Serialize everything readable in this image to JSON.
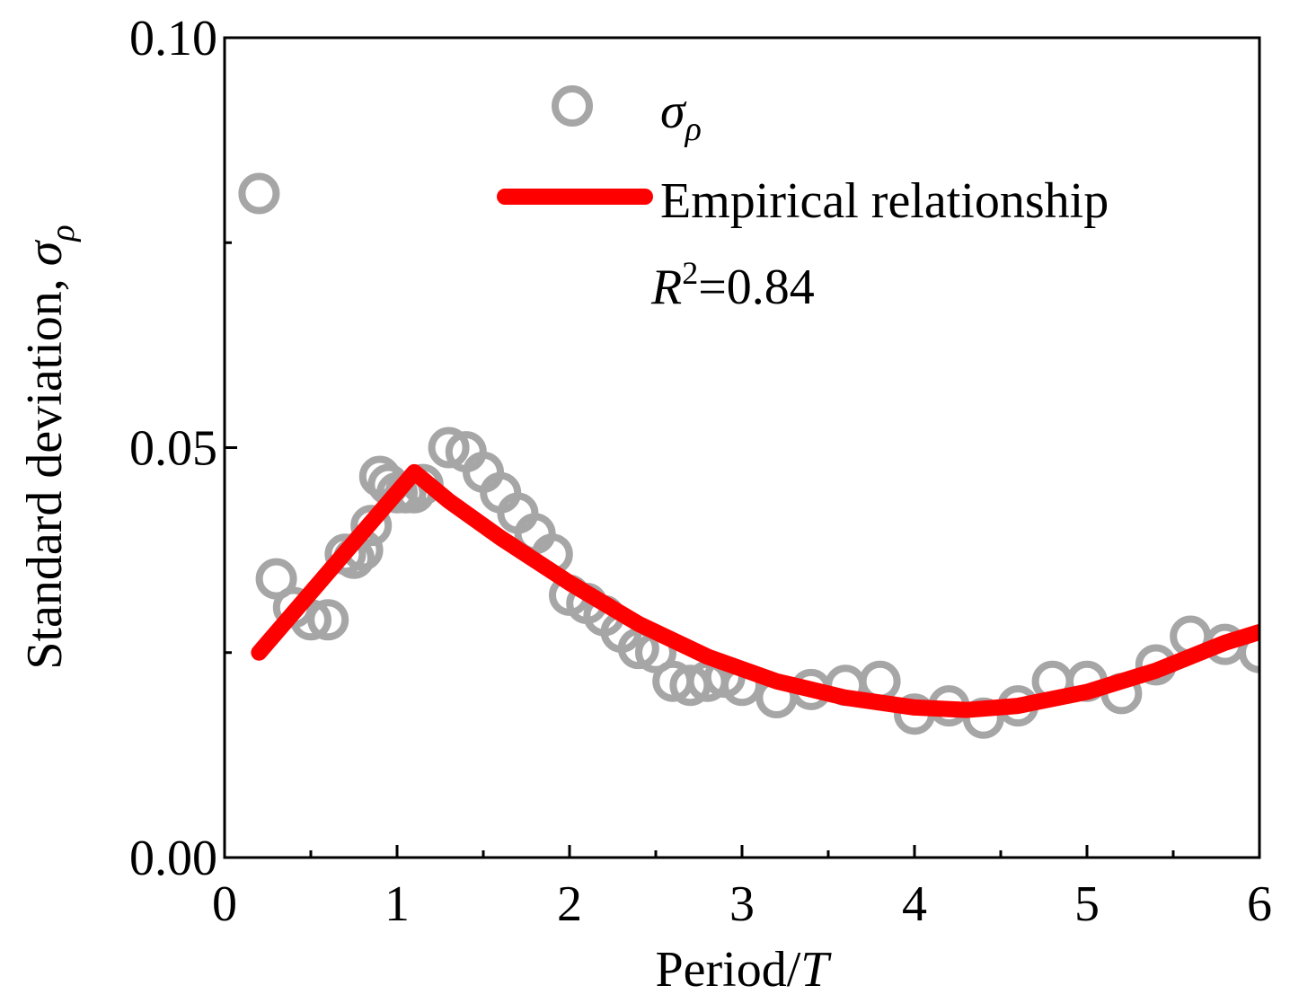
{
  "chart_data": {
    "type": "scatter",
    "xlabel_main": "Period/",
    "xlabel_italic": "T",
    "ylabel_main": "Standard deviation, ",
    "ylabel_symbol": "σ",
    "ylabel_sub": "ρ",
    "xlim": [
      0,
      6
    ],
    "ylim": [
      0,
      0.1
    ],
    "xticks": [
      0,
      1,
      2,
      3,
      4,
      5,
      6
    ],
    "xtick_labels": [
      "0",
      "1",
      "2",
      "3",
      "4",
      "5",
      "6"
    ],
    "yticks": [
      0,
      0.05,
      0.1
    ],
    "ytick_labels": [
      "0.00",
      "0.05",
      "0.10"
    ],
    "grid": false,
    "legend_position": "top-right",
    "colors": {
      "scatter": "#a6a6a6",
      "fit": "#ff0000",
      "axis": "#000000"
    },
    "series": [
      {
        "name": "σρ",
        "legend_symbol": "σ",
        "legend_sub": "ρ",
        "kind": "scatter",
        "marker": "open-circle",
        "x": [
          0.2,
          0.3,
          0.4,
          0.5,
          0.6,
          0.7,
          0.75,
          0.8,
          0.85,
          0.9,
          0.95,
          1.0,
          1.05,
          1.1,
          1.15,
          1.3,
          1.4,
          1.5,
          1.6,
          1.7,
          1.8,
          1.9,
          2.0,
          2.1,
          2.2,
          2.3,
          2.4,
          2.5,
          2.6,
          2.7,
          2.8,
          2.9,
          3.0,
          3.2,
          3.4,
          3.6,
          3.8,
          4.0,
          4.2,
          4.4,
          4.6,
          4.8,
          5.0,
          5.2,
          5.4,
          5.6,
          5.8,
          6.0
        ],
        "y": [
          0.081,
          0.034,
          0.0305,
          0.029,
          0.029,
          0.037,
          0.0365,
          0.0375,
          0.0405,
          0.0465,
          0.0455,
          0.0445,
          0.0445,
          0.0445,
          0.0455,
          0.05,
          0.0495,
          0.047,
          0.0445,
          0.042,
          0.0395,
          0.037,
          0.032,
          0.031,
          0.0295,
          0.0275,
          0.0255,
          0.025,
          0.0215,
          0.021,
          0.0215,
          0.022,
          0.021,
          0.0195,
          0.0205,
          0.021,
          0.0215,
          0.0175,
          0.0185,
          0.017,
          0.0185,
          0.0215,
          0.0215,
          0.02,
          0.0235,
          0.027,
          0.026,
          0.025
        ]
      },
      {
        "name": "Empirical relationship",
        "kind": "line",
        "x": [
          0.2,
          1.1,
          1.3,
          1.6,
          2.0,
          2.4,
          2.8,
          3.2,
          3.6,
          4.0,
          4.3,
          4.6,
          5.0,
          5.4,
          5.8,
          6.0
        ],
        "y": [
          0.025,
          0.047,
          0.0435,
          0.039,
          0.0335,
          0.0285,
          0.0245,
          0.0215,
          0.0195,
          0.0183,
          0.018,
          0.0185,
          0.0202,
          0.0228,
          0.0262,
          0.0275
        ]
      }
    ],
    "annotation_main": "R",
    "annotation_sup": "2",
    "annotation_value": "=0.84"
  }
}
